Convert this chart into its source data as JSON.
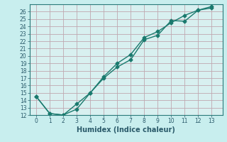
{
  "xlabel": "Humidex (Indice chaleur)",
  "xlim": [
    -0.5,
    13.8
  ],
  "ylim": [
    12,
    27
  ],
  "yticks": [
    12,
    13,
    14,
    15,
    16,
    17,
    18,
    19,
    20,
    21,
    22,
    23,
    24,
    25,
    26
  ],
  "xticks": [
    0,
    1,
    2,
    3,
    4,
    5,
    6,
    7,
    8,
    9,
    10,
    11,
    12,
    13
  ],
  "line1_x": [
    0,
    1,
    2,
    3,
    4,
    5,
    6,
    7,
    8,
    9,
    10,
    11,
    12,
    13
  ],
  "line1_y": [
    14.5,
    12.2,
    12.0,
    12.8,
    15.0,
    17.0,
    18.5,
    19.5,
    22.2,
    22.8,
    24.8,
    24.7,
    26.2,
    26.5
  ],
  "line2_x": [
    0,
    1,
    2,
    3,
    4,
    5,
    6,
    7,
    8,
    9,
    10,
    11,
    12,
    13
  ],
  "line2_y": [
    14.5,
    12.2,
    12.0,
    13.5,
    15.0,
    17.2,
    19.0,
    20.2,
    22.5,
    23.3,
    24.5,
    25.5,
    26.2,
    26.7
  ],
  "line_color": "#1a7a6e",
  "bg_color": "#c8eeee",
  "grid_color": "#c0a8b0",
  "ax_bg_color": "#d8f0f0",
  "marker": "D",
  "marker_size": 2.5,
  "line_width": 1.0,
  "font_color": "#2a5a6a",
  "xlabel_fontsize": 7,
  "tick_fontsize": 5.5,
  "spine_color": "#2a7a7a"
}
